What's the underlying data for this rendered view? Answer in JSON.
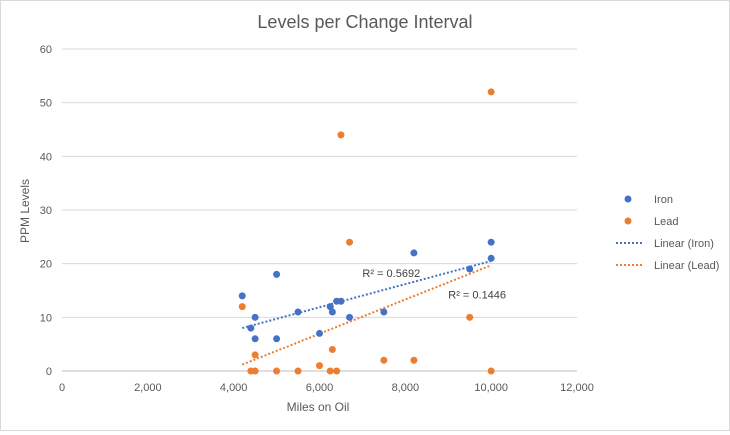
{
  "chart_data": {
    "type": "scatter",
    "title": "Levels per Change Interval",
    "xlabel": "Miles on Oil",
    "ylabel": "PPM Levels",
    "xlim": [
      0,
      12000
    ],
    "ylim": [
      0,
      60
    ],
    "x_ticks": [
      0,
      2000,
      4000,
      6000,
      8000,
      10000,
      12000
    ],
    "x_tick_labels": [
      "0",
      "2,000",
      "4,000",
      "6,000",
      "8,000",
      "10,000",
      "12,000"
    ],
    "y_ticks": [
      0,
      10,
      20,
      30,
      40,
      50,
      60
    ],
    "y_tick_labels": [
      "0",
      "10",
      "20",
      "30",
      "40",
      "50",
      "60"
    ],
    "grid": "horizontal",
    "legend_position": "right",
    "series": [
      {
        "name": "Iron",
        "color": "#4472C4",
        "points": [
          [
            4200,
            14
          ],
          [
            4400,
            8
          ],
          [
            4500,
            6
          ],
          [
            4500,
            10
          ],
          [
            5000,
            18
          ],
          [
            5000,
            6
          ],
          [
            5500,
            11
          ],
          [
            6000,
            7
          ],
          [
            6250,
            12
          ],
          [
            6300,
            11
          ],
          [
            6400,
            13
          ],
          [
            6500,
            13
          ],
          [
            6700,
            10
          ],
          [
            7500,
            11
          ],
          [
            8200,
            22
          ],
          [
            9500,
            19
          ],
          [
            10000,
            24
          ],
          [
            10000,
            21
          ]
        ]
      },
      {
        "name": "Lead",
        "color": "#ED7D31",
        "points": [
          [
            4200,
            12
          ],
          [
            4400,
            0
          ],
          [
            4500,
            3
          ],
          [
            4500,
            0
          ],
          [
            5000,
            0
          ],
          [
            5500,
            0
          ],
          [
            6000,
            1
          ],
          [
            6250,
            0
          ],
          [
            6300,
            4
          ],
          [
            6400,
            0
          ],
          [
            6500,
            44
          ],
          [
            6700,
            24
          ],
          [
            7500,
            2
          ],
          [
            8200,
            2
          ],
          [
            9500,
            10
          ],
          [
            10000,
            52
          ],
          [
            10000,
            0
          ]
        ]
      }
    ],
    "trendlines": [
      {
        "name": "Linear (Iron)",
        "color": "#4472C4",
        "x_range": [
          4200,
          10000
        ],
        "y_start": 8,
        "y_end": 20.5,
        "r_squared_label": "R² = 0.5692",
        "label_at": [
          7000,
          17.5
        ]
      },
      {
        "name": "Linear (Lead)",
        "color": "#ED7D31",
        "x_range": [
          4200,
          10000
        ],
        "y_start": 1.2,
        "y_end": 19.7,
        "r_squared_label": "R² = 0.1446",
        "label_at": [
          9000,
          13.5
        ]
      }
    ]
  }
}
